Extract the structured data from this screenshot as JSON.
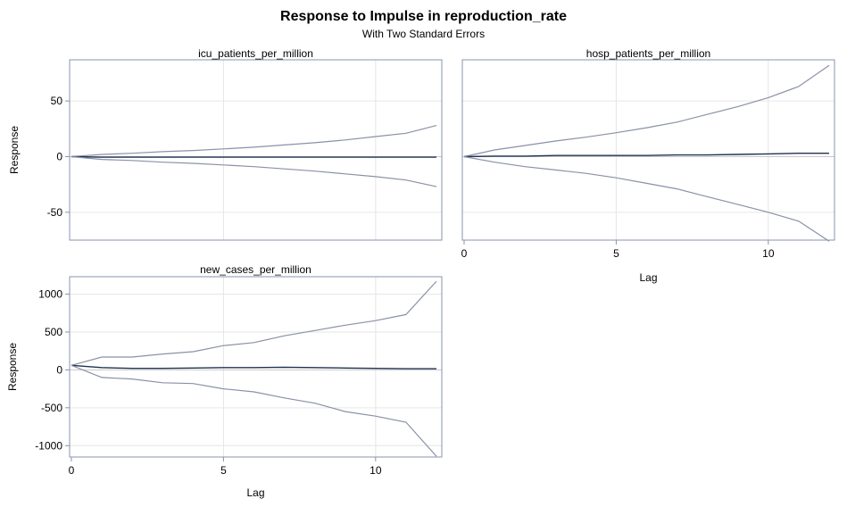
{
  "figure": {
    "title": "Response to Impulse in reproduction_rate",
    "subtitle": "With Two Standard Errors"
  },
  "chart_data": [
    {
      "type": "line",
      "title": "icu_patients_per_million",
      "xlabel": "",
      "ylabel": "Response",
      "xlim": [
        0,
        12
      ],
      "ylim": [
        -75,
        87
      ],
      "yticks": [
        50,
        0,
        -50
      ],
      "xticks": [],
      "grid": true,
      "x": [
        0,
        1,
        2,
        3,
        4,
        5,
        6,
        7,
        8,
        9,
        10,
        11,
        12
      ],
      "series": [
        {
          "role": "upper",
          "values": [
            0,
            2,
            3,
            4.5,
            5.5,
            7,
            8.5,
            10.5,
            12.5,
            15,
            18,
            21,
            28
          ]
        },
        {
          "role": "response",
          "values": [
            0,
            -0.5,
            -0.5,
            -0.5,
            -0.5,
            -0.5,
            -0.5,
            -0.5,
            -0.5,
            -0.5,
            -0.5,
            -0.5,
            -0.5
          ]
        },
        {
          "role": "lower",
          "values": [
            0,
            -2.5,
            -3.5,
            -5,
            -6,
            -7.5,
            -9,
            -11,
            -13,
            -15.5,
            -18,
            -21,
            -27
          ]
        }
      ]
    },
    {
      "type": "line",
      "title": "hosp_patients_per_million",
      "xlabel": "Lag",
      "ylabel": "",
      "xlim": [
        0,
        12
      ],
      "ylim": [
        -75,
        87
      ],
      "yticks": [],
      "xticks": [
        0,
        5,
        10
      ],
      "grid": true,
      "x": [
        0,
        1,
        2,
        3,
        4,
        5,
        6,
        7,
        8,
        9,
        10,
        11,
        12
      ],
      "series": [
        {
          "role": "upper",
          "values": [
            0,
            6,
            10,
            14,
            17.5,
            21.5,
            26,
            31,
            38,
            45,
            53,
            63,
            82
          ]
        },
        {
          "role": "response",
          "values": [
            0,
            0.5,
            0.5,
            1,
            1,
            1,
            1,
            1.5,
            1.5,
            2,
            2.5,
            3,
            3
          ]
        },
        {
          "role": "lower",
          "values": [
            0,
            -5,
            -9,
            -12,
            -15,
            -19,
            -24,
            -29,
            -36,
            -43,
            -50,
            -58,
            -76
          ]
        }
      ]
    },
    {
      "type": "line",
      "title": "new_cases_per_million",
      "xlabel": "Lag",
      "ylabel": "Response",
      "xlim": [
        0,
        12
      ],
      "ylim": [
        -1150,
        1230
      ],
      "yticks": [
        1000,
        500,
        0,
        -500,
        -1000
      ],
      "xticks": [
        0,
        5,
        10
      ],
      "grid": true,
      "x": [
        0,
        1,
        2,
        3,
        4,
        5,
        6,
        7,
        8,
        9,
        10,
        11,
        12
      ],
      "series": [
        {
          "role": "upper",
          "values": [
            60,
            170,
            170,
            210,
            240,
            320,
            360,
            450,
            520,
            590,
            650,
            730,
            1170
          ]
        },
        {
          "role": "response",
          "values": [
            60,
            30,
            20,
            20,
            25,
            30,
            30,
            35,
            30,
            25,
            20,
            15,
            15
          ]
        },
        {
          "role": "lower",
          "values": [
            60,
            -100,
            -120,
            -170,
            -180,
            -250,
            -290,
            -370,
            -440,
            -550,
            -610,
            -690,
            -1140
          ]
        }
      ]
    }
  ],
  "colors": {
    "response": "#1f3352",
    "bands": "#8a91a8",
    "frame": "#8a93ad",
    "grid": "#e6e6e6",
    "zero": "#c8c8c8"
  }
}
